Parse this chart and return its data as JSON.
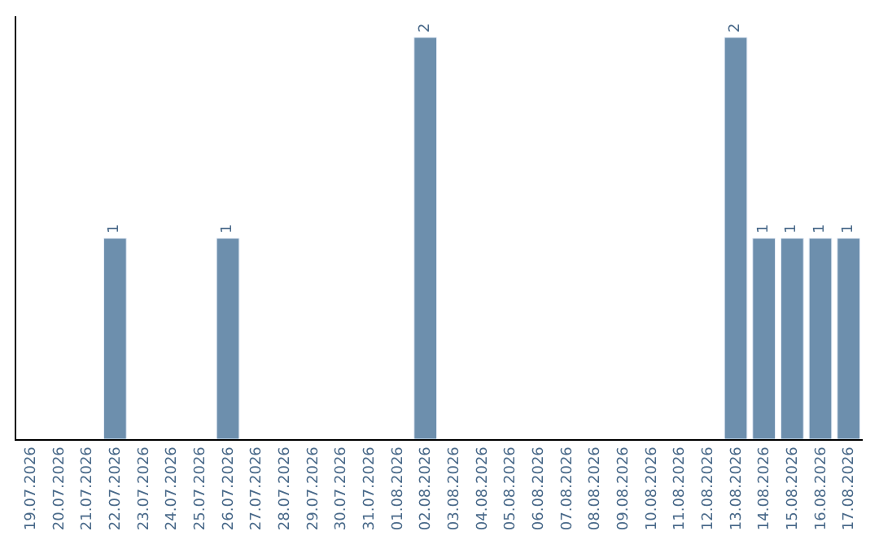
{
  "chart_data": {
    "type": "bar",
    "categories": [
      "19.07.2026",
      "20.07.2026",
      "21.07.2026",
      "22.07.2026",
      "23.07.2026",
      "24.07.2026",
      "25.07.2026",
      "26.07.2026",
      "27.07.2026",
      "28.07.2026",
      "29.07.2026",
      "30.07.2026",
      "31.07.2026",
      "01.08.2026",
      "02.08.2026",
      "03.08.2026",
      "04.08.2026",
      "05.08.2026",
      "06.08.2026",
      "07.08.2026",
      "08.08.2026",
      "09.08.2026",
      "10.08.2026",
      "11.08.2026",
      "12.08.2026",
      "13.08.2026",
      "14.08.2026",
      "15.08.2026",
      "16.08.2026",
      "17.08.2026"
    ],
    "values": [
      null,
      null,
      null,
      1,
      null,
      null,
      null,
      1,
      null,
      null,
      null,
      null,
      null,
      null,
      2,
      null,
      null,
      null,
      null,
      null,
      null,
      null,
      null,
      null,
      null,
      2,
      1,
      1,
      1,
      1
    ],
    "value_labels": [
      null,
      null,
      null,
      "1",
      null,
      null,
      null,
      "1",
      null,
      null,
      null,
      null,
      null,
      null,
      "2",
      null,
      null,
      null,
      null,
      null,
      null,
      null,
      null,
      null,
      null,
      "2",
      "1",
      "1",
      "1",
      "1"
    ],
    "color": "#6d8fad",
    "tick_labels": "x"
  }
}
